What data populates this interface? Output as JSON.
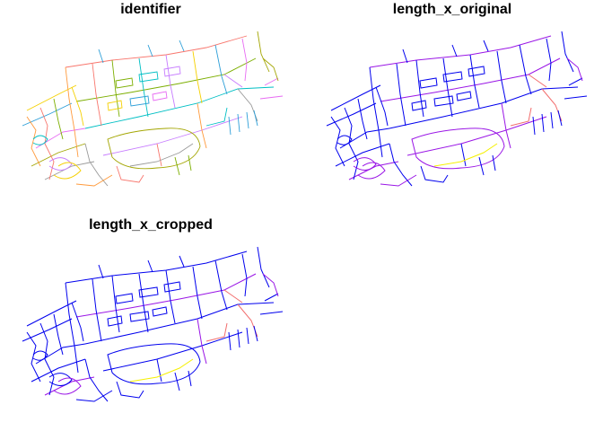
{
  "panels": [
    {
      "title": "identifier"
    },
    {
      "title": "length_x_original"
    },
    {
      "title": "length_x_cropped"
    }
  ],
  "colors": {
    "long": "#0000ee",
    "medium": "#9a16e6",
    "short": "#f26d6d",
    "shortest": "#f5f000",
    "identifier_palette": [
      "#f8766d",
      "#7cae00",
      "#00bfc4",
      "#c77cff",
      "#f5d000",
      "#2c9ed8",
      "#e76bf3",
      "#a3a500",
      "#999999",
      "#ff9a3c"
    ]
  }
}
